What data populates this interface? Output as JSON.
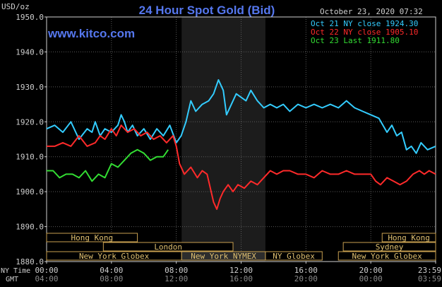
{
  "chart_data": {
    "type": "line",
    "title": "24 Hour Spot Gold (Bid)",
    "subtitle": "www.kitco.com",
    "timestamp": "October 23, 2020 07:32",
    "ylabel": "USD/oz",
    "ylim": [
      1880.0,
      1950.0
    ],
    "yticks": [
      "1950.0",
      "1940.0",
      "1930.0",
      "1920.0",
      "1910.0",
      "1900.0",
      "1890.0",
      "1880.0"
    ],
    "ytick_values": [
      1950,
      1940,
      1930,
      1920,
      1910,
      1900,
      1890,
      1880
    ],
    "xlim": [
      0,
      24
    ],
    "xticks_ny": [
      "00:00",
      "04:00",
      "08:00",
      "12:00",
      "16:00",
      "20:00",
      "23:59"
    ],
    "xticks_gmt": [
      "04:00",
      "08:00",
      "12:00",
      "16:00",
      "20:00",
      "00:00",
      "03:59"
    ],
    "xtick_hours": [
      0,
      4,
      8,
      12,
      16,
      20,
      24
    ],
    "x_label_ny": "NY Time",
    "x_label_gmt": "GMT",
    "highlight_band": [
      8.33,
      13.5
    ],
    "legend_position": "top-right",
    "series": [
      {
        "name": "Oct 21 NY close 1924.30",
        "color": "#33ccff",
        "x": [
          0,
          0.5,
          1,
          1.5,
          2,
          2.5,
          2.8,
          3,
          3.3,
          3.6,
          4,
          4.4,
          4.6,
          4.8,
          5,
          5.3,
          5.6,
          6,
          6.4,
          6.8,
          7.2,
          7.6,
          8,
          8.3,
          8.6,
          8.9,
          9.2,
          9.6,
          10,
          10.3,
          10.6,
          10.9,
          11.1,
          11.4,
          11.7,
          12,
          12.3,
          12.6,
          13,
          13.4,
          13.8,
          14.2,
          14.6,
          15,
          15.5,
          16,
          16.5,
          17,
          17.5,
          18,
          18.5,
          19,
          19.5,
          20,
          20.5,
          21,
          21.3,
          21.6,
          21.9,
          22.2,
          22.5,
          22.8,
          23.1,
          23.5,
          24
        ],
        "values": [
          1918,
          1919,
          1917,
          1920,
          1915,
          1918,
          1917,
          1920,
          1916,
          1918,
          1917,
          1919,
          1922,
          1920,
          1917,
          1919,
          1916,
          1918,
          1915,
          1918,
          1916,
          1919,
          1914,
          1916,
          1920,
          1926,
          1923,
          1925,
          1926,
          1928,
          1932,
          1929,
          1922,
          1925,
          1928,
          1927,
          1926,
          1929,
          1926,
          1924,
          1925,
          1924,
          1925,
          1923,
          1925,
          1924,
          1925,
          1924,
          1925,
          1924,
          1926,
          1924,
          1923,
          1922,
          1921,
          1917,
          1919,
          1916,
          1917,
          1912,
          1913,
          1911,
          1914,
          1912,
          1913
        ]
      },
      {
        "name": "Oct 22 NY close 1905.10",
        "color": "#ff2a2a",
        "x": [
          0,
          0.5,
          1,
          1.5,
          2,
          2.5,
          3,
          3.3,
          3.6,
          4,
          4.3,
          4.6,
          5,
          5.4,
          5.8,
          6.2,
          6.6,
          7,
          7.4,
          7.8,
          8,
          8.2,
          8.5,
          8.9,
          9.3,
          9.6,
          9.9,
          10.1,
          10.3,
          10.5,
          10.7,
          10.9,
          11.2,
          11.5,
          11.8,
          12.2,
          12.6,
          13,
          13.4,
          13.8,
          14.2,
          14.6,
          15,
          15.5,
          16,
          16.5,
          17,
          17.5,
          18,
          18.5,
          19,
          19.5,
          20,
          20.3,
          20.6,
          21,
          21.4,
          21.8,
          22.2,
          22.6,
          23,
          23.3,
          23.6,
          24
        ],
        "values": [
          1913,
          1913,
          1914,
          1913,
          1916,
          1913,
          1914,
          1916,
          1915,
          1918,
          1916,
          1919,
          1917,
          1918,
          1916,
          1917,
          1915,
          1916,
          1914,
          1916,
          1913,
          1908,
          1905,
          1907,
          1904,
          1906,
          1905,
          1901,
          1897,
          1895,
          1898,
          1900,
          1902,
          1900,
          1902,
          1901,
          1903,
          1902,
          1904,
          1906,
          1905,
          1906,
          1906,
          1905,
          1905,
          1904,
          1906,
          1905,
          1905,
          1906,
          1905,
          1905,
          1905,
          1903,
          1902,
          1904,
          1903,
          1902,
          1903,
          1905,
          1906,
          1905,
          1906,
          1905
        ]
      },
      {
        "name": "Oct 23 Last 1911.80",
        "color": "#33dd33",
        "x": [
          0,
          0.4,
          0.8,
          1.2,
          1.6,
          2,
          2.4,
          2.8,
          3.2,
          3.6,
          4,
          4.4,
          4.8,
          5.2,
          5.6,
          6,
          6.4,
          6.8,
          7.2,
          7.5
        ],
        "values": [
          1906,
          1906,
          1904,
          1905,
          1905,
          1904,
          1906,
          1903,
          1905,
          1904,
          1908,
          1907,
          1909,
          1911,
          1912,
          1911,
          1909,
          1910,
          1910,
          1912
        ]
      }
    ],
    "market_rows": [
      {
        "row": 0,
        "label": "Hong Kong",
        "start": 0,
        "end": 5.6,
        "fill": "#000000"
      },
      {
        "row": 0,
        "label": "Hong Kong",
        "start": 20.7,
        "end": 24,
        "fill": "#000000"
      },
      {
        "row": 1,
        "label": "London",
        "start": 3.5,
        "end": 11.5,
        "fill": "#000000"
      },
      {
        "row": 1,
        "label": "Sydney",
        "start": 18.3,
        "end": 24,
        "fill": "#000000"
      },
      {
        "row": 2,
        "label": "New York Globex",
        "start": 0,
        "end": 8.33,
        "fill": "#000000"
      },
      {
        "row": 2,
        "label": "New York NYMEX",
        "start": 8.33,
        "end": 13.5,
        "fill": "#2d2d2d"
      },
      {
        "row": 2,
        "label": "NY Globex",
        "start": 13.5,
        "end": 17,
        "fill": "#000000"
      },
      {
        "row": 2,
        "label": "New York Globex",
        "start": 18,
        "end": 24,
        "fill": "#000000"
      }
    ]
  },
  "colors": {
    "background": "#000000",
    "axis": "#cfcfcf",
    "grid": "#5a5a5a",
    "title": "#5577ee",
    "band": "#1c1c1c",
    "market_border": "#c8a050",
    "market_text": "#e0c070"
  }
}
